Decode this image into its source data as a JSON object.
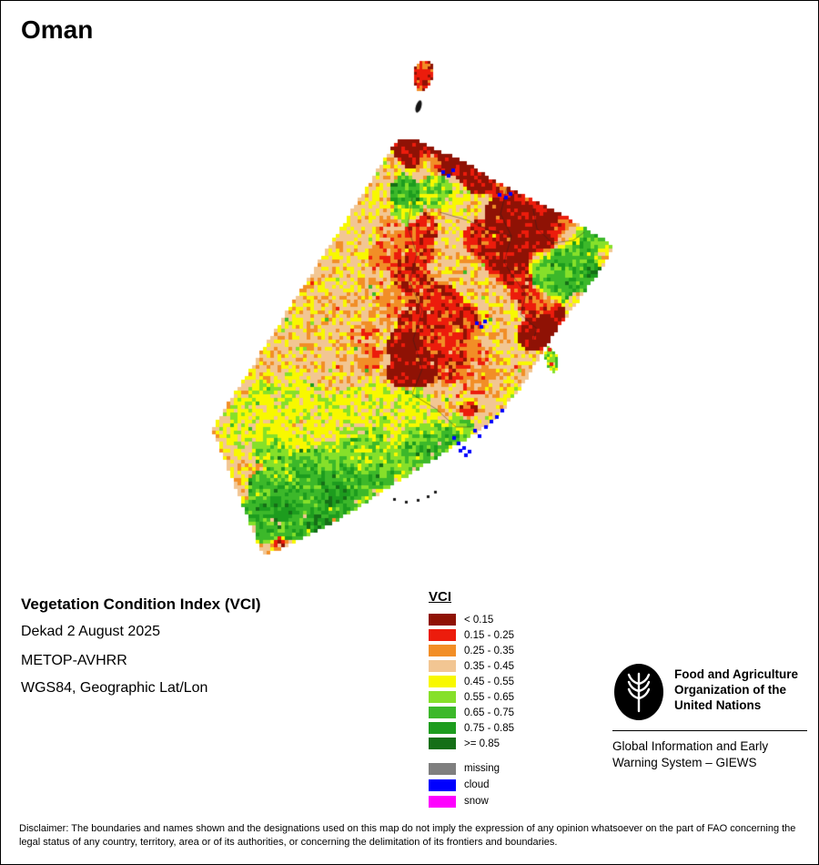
{
  "page": {
    "title": "Oman"
  },
  "info": {
    "heading": "Vegetation Condition Index (VCI)",
    "lines": [
      "Dekad 2 August 2025",
      "METOP-AVHRR",
      "WGS84, Geographic Lat/Lon"
    ]
  },
  "legend": {
    "title": "VCI",
    "classes": [
      {
        "label": "< 0.15",
        "color": "#8f1205"
      },
      {
        "label": "0.15 - 0.25",
        "color": "#ec1c0c"
      },
      {
        "label": "0.25 - 0.35",
        "color": "#f28e26"
      },
      {
        "label": "0.35 - 0.45",
        "color": "#f2c693"
      },
      {
        "label": "0.45 - 0.55",
        "color": "#f8f800"
      },
      {
        "label": "0.55 - 0.65",
        "color": "#86e02a"
      },
      {
        "label": "0.65 - 0.75",
        "color": "#3cb82a"
      },
      {
        "label": "0.75 - 0.85",
        "color": "#1d9c1e"
      },
      {
        "label": ">= 0.85",
        "color": "#156f17"
      }
    ],
    "extra": [
      {
        "label": "missing",
        "color": "#7f7f7f"
      },
      {
        "label": "cloud",
        "color": "#0000fe"
      },
      {
        "label": "snow",
        "color": "#fe00fe"
      }
    ]
  },
  "org": {
    "name_lines": [
      "Food and Agriculture",
      "Organization of the",
      "United Nations"
    ],
    "giews_lines": [
      "Global Information and Early",
      "Warning System – GIEWS"
    ]
  },
  "disclaimer": "Disclaimer: The boundaries and names shown and the designations used on this map do not imply the expression of any opinion whatsoever on the part of FAO concerning the legal status of any country, territory, area or of its authorities, or concerning the delimitation of its frontiers and boundaries."
}
